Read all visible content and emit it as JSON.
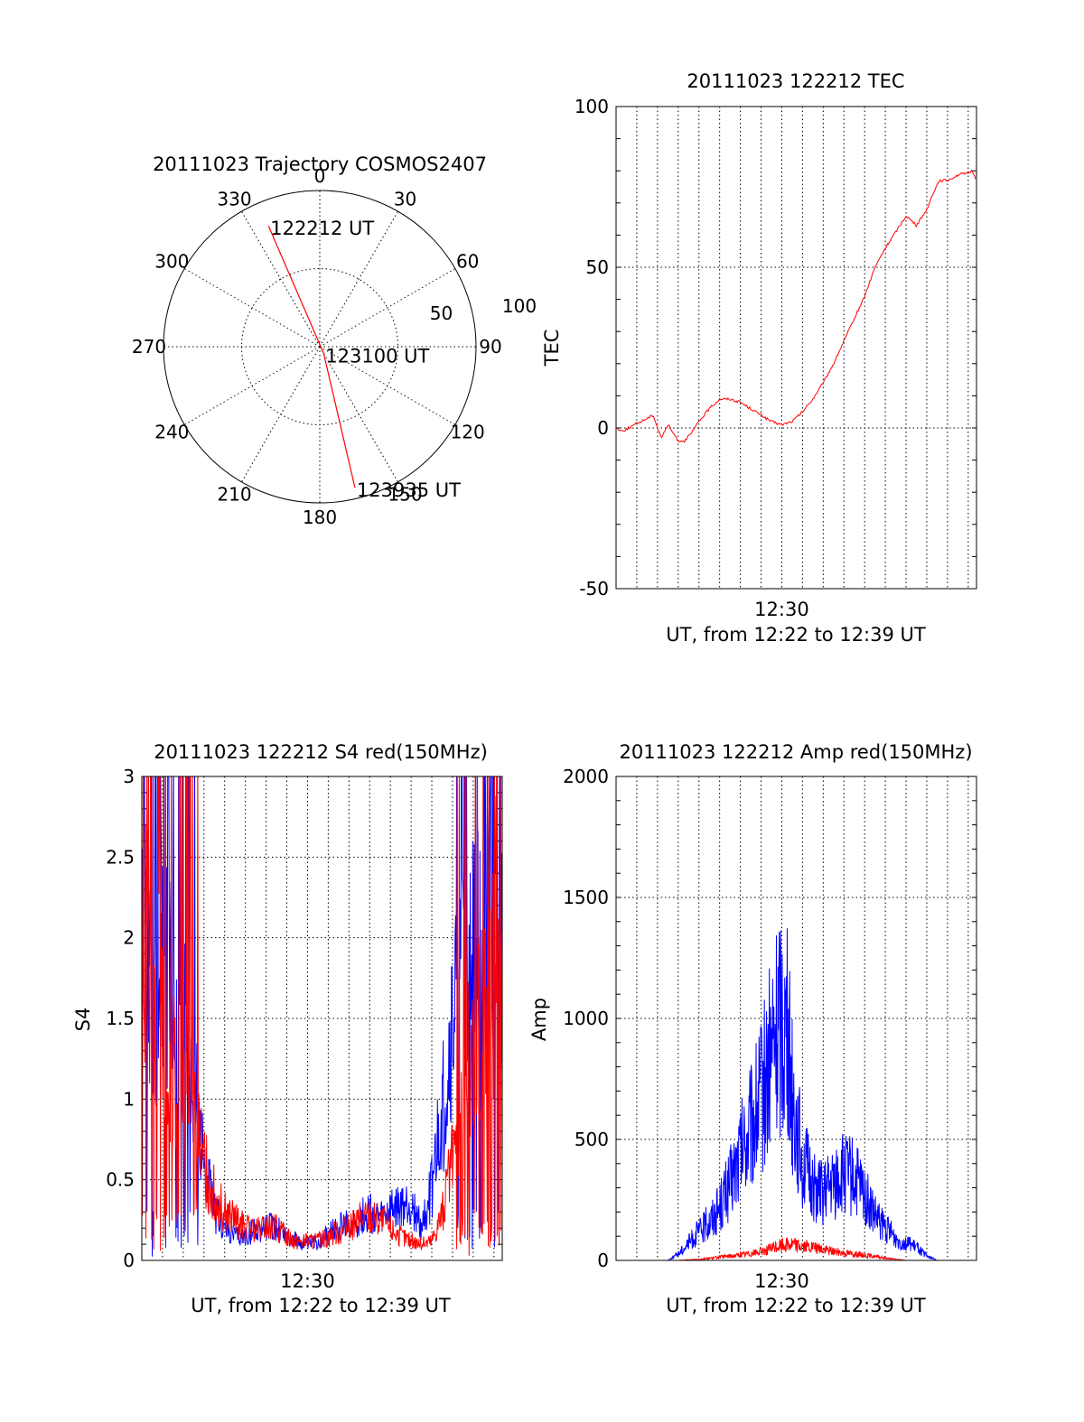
{
  "figure": {
    "background": "#ffffff",
    "colors": {
      "red": "#ff0000",
      "blue": "#0000ff",
      "axes": "#000000"
    }
  },
  "chart_data": [
    {
      "type": "polar",
      "title": "20111023 Trajectory COSMOS2407",
      "angle_labels": [
        "0",
        "30",
        "60",
        "90",
        "120",
        "150",
        "180",
        "210",
        "240",
        "270",
        "300",
        "330"
      ],
      "angle_values": [
        0,
        30,
        60,
        90,
        120,
        150,
        180,
        210,
        240,
        270,
        300,
        330
      ],
      "radial_ticks": [
        {
          "value": 50,
          "label": "50"
        },
        {
          "value": 100,
          "label": "100"
        }
      ],
      "radial_max": 100,
      "grid": true,
      "track": {
        "color": "red",
        "points": [
          {
            "azimuth": 337,
            "radius": 84,
            "label": "122212 UT"
          },
          {
            "azimuth": 150,
            "radius": 5,
            "label": "123100 UT"
          },
          {
            "azimuth": 166,
            "radius": 93,
            "label": "123935 UT"
          }
        ]
      }
    },
    {
      "type": "line",
      "title": "20111023 122212 TEC",
      "xlabel": "UT, from 12:22 to 12:39 UT",
      "ylabel": "TEC",
      "xticks": [
        {
          "value": 8.0,
          "label": "12:30"
        }
      ],
      "xminor_step_minutes": 1,
      "xlim": [
        0,
        17.4
      ],
      "ylim": [
        -50,
        100
      ],
      "yticks": [
        -50,
        0,
        50,
        100
      ],
      "grid": true,
      "series": [
        {
          "color": "red",
          "x": [
            0,
            0.3,
            0.6,
            0.9,
            1.2,
            1.5,
            1.8,
            2.0,
            2.2,
            2.5,
            2.8,
            3.0,
            3.3,
            3.6,
            4.0,
            4.5,
            5.0,
            5.5,
            6.0,
            6.5,
            7.0,
            7.5,
            8.0,
            8.5,
            9.0,
            9.5,
            10.0,
            10.5,
            11.0,
            11.5,
            12.0,
            12.5,
            13.0,
            13.5,
            14.0,
            14.5,
            15.0,
            15.3,
            15.6,
            16.0,
            16.3,
            16.6,
            16.9,
            17.2,
            17.4
          ],
          "y": [
            0,
            -1,
            0,
            1,
            2,
            3,
            4,
            0,
            -3,
            1,
            -2,
            -4,
            -4,
            -2,
            2,
            6,
            9,
            9,
            8,
            6,
            4,
            2,
            1,
            2,
            5,
            9,
            14,
            20,
            27,
            34,
            41,
            50,
            56,
            61,
            66,
            63,
            68,
            73,
            77,
            77,
            78,
            79,
            79,
            80,
            77
          ]
        }
      ]
    },
    {
      "type": "line",
      "title": "20111023 122212 S4 red(150MHz)",
      "xlabel": "UT, from 12:22 to 12:39 UT",
      "ylabel": "S4",
      "xticks": [
        {
          "value": 8.0,
          "label": "12:30"
        }
      ],
      "xminor_step_minutes": 1,
      "xlim": [
        0,
        17.4
      ],
      "ylim": [
        0,
        3
      ],
      "yticks": [
        0,
        0.5,
        1,
        1.5,
        2,
        2.5,
        3
      ],
      "ytick_labels": [
        "0",
        "0.5",
        "1",
        "1.5",
        "2",
        "2.5",
        "3"
      ],
      "grid": true,
      "series": [
        {
          "color": "blue",
          "x": [
            0,
            0.5,
            1.0,
            1.5,
            2.0,
            2.5,
            3.0,
            3.5,
            4.0,
            4.5,
            5.0,
            5.5,
            6.0,
            6.5,
            7.0,
            7.5,
            8.0,
            8.5,
            9.0,
            9.5,
            10.0,
            10.5,
            11.0,
            11.5,
            12.0,
            12.5,
            13.0,
            13.5,
            14.0,
            14.5,
            15.0,
            15.5,
            16.0,
            16.5,
            17.0,
            17.4
          ],
          "y": [
            2.5,
            2.2,
            1.9,
            1.6,
            1.4,
            1.1,
            0.6,
            0.3,
            0.2,
            0.15,
            0.15,
            0.2,
            0.2,
            0.22,
            0.15,
            0.12,
            0.1,
            0.12,
            0.16,
            0.2,
            0.22,
            0.26,
            0.3,
            0.25,
            0.3,
            0.32,
            0.35,
            0.2,
            0.45,
            0.9,
            1.4,
            1.8,
            2.0,
            2.1,
            2.2,
            2.2
          ]
        },
        {
          "color": "red",
          "x": [
            0,
            0.5,
            1.0,
            1.5,
            2.0,
            2.5,
            3.0,
            3.5,
            4.0,
            4.5,
            5.0,
            5.5,
            6.0,
            6.5,
            7.0,
            7.5,
            8.0,
            8.5,
            9.0,
            9.5,
            10.0,
            10.5,
            11.0,
            11.5,
            12.0,
            12.5,
            13.0,
            13.5,
            14.0,
            14.5,
            15.0,
            15.5,
            16.0,
            16.5,
            17.0,
            17.4
          ],
          "y": [
            2.0,
            1.8,
            1.5,
            1.2,
            1.0,
            0.9,
            0.6,
            0.4,
            0.3,
            0.25,
            0.2,
            0.18,
            0.2,
            0.2,
            0.15,
            0.12,
            0.12,
            0.12,
            0.15,
            0.18,
            0.2,
            0.25,
            0.28,
            0.25,
            0.2,
            0.15,
            0.12,
            0.1,
            0.12,
            0.3,
            0.6,
            1.0,
            1.4,
            1.6,
            1.7,
            1.6
          ]
        }
      ]
    },
    {
      "type": "line",
      "title": "20111023 122212 Amp red(150MHz)",
      "xlabel": "UT, from 12:22 to 12:39 UT",
      "ylabel": "Amp",
      "xticks": [
        {
          "value": 8.0,
          "label": "12:30"
        }
      ],
      "xminor_step_minutes": 1,
      "xlim": [
        0,
        17.4
      ],
      "ylim": [
        0,
        2000
      ],
      "yticks": [
        0,
        500,
        1000,
        1500,
        2000
      ],
      "grid": true,
      "series": [
        {
          "color": "blue",
          "x": [
            0,
            2.5,
            3.0,
            3.5,
            4.0,
            4.5,
            5.0,
            5.5,
            6.0,
            6.5,
            7.0,
            7.5,
            8.0,
            8.3,
            8.6,
            9.0,
            9.5,
            10.0,
            10.5,
            11.0,
            11.5,
            12.0,
            12.5,
            13.0,
            13.5,
            14.0,
            14.5,
            15.0,
            15.5,
            17.4
          ],
          "y": [
            0,
            0,
            30,
            80,
            130,
            180,
            250,
            350,
            480,
            600,
            750,
            950,
            1150,
            1000,
            700,
            450,
            350,
            300,
            350,
            400,
            380,
            300,
            200,
            150,
            100,
            80,
            60,
            20,
            0,
            0
          ]
        },
        {
          "color": "red",
          "x": [
            0,
            3.0,
            4.0,
            5.0,
            6.0,
            7.0,
            8.0,
            8.5,
            9.0,
            10.0,
            11.0,
            12.0,
            13.0,
            14.0,
            17.4
          ],
          "y": [
            0,
            0,
            5,
            15,
            25,
            40,
            70,
            75,
            65,
            50,
            35,
            25,
            10,
            0,
            0
          ]
        }
      ]
    }
  ]
}
